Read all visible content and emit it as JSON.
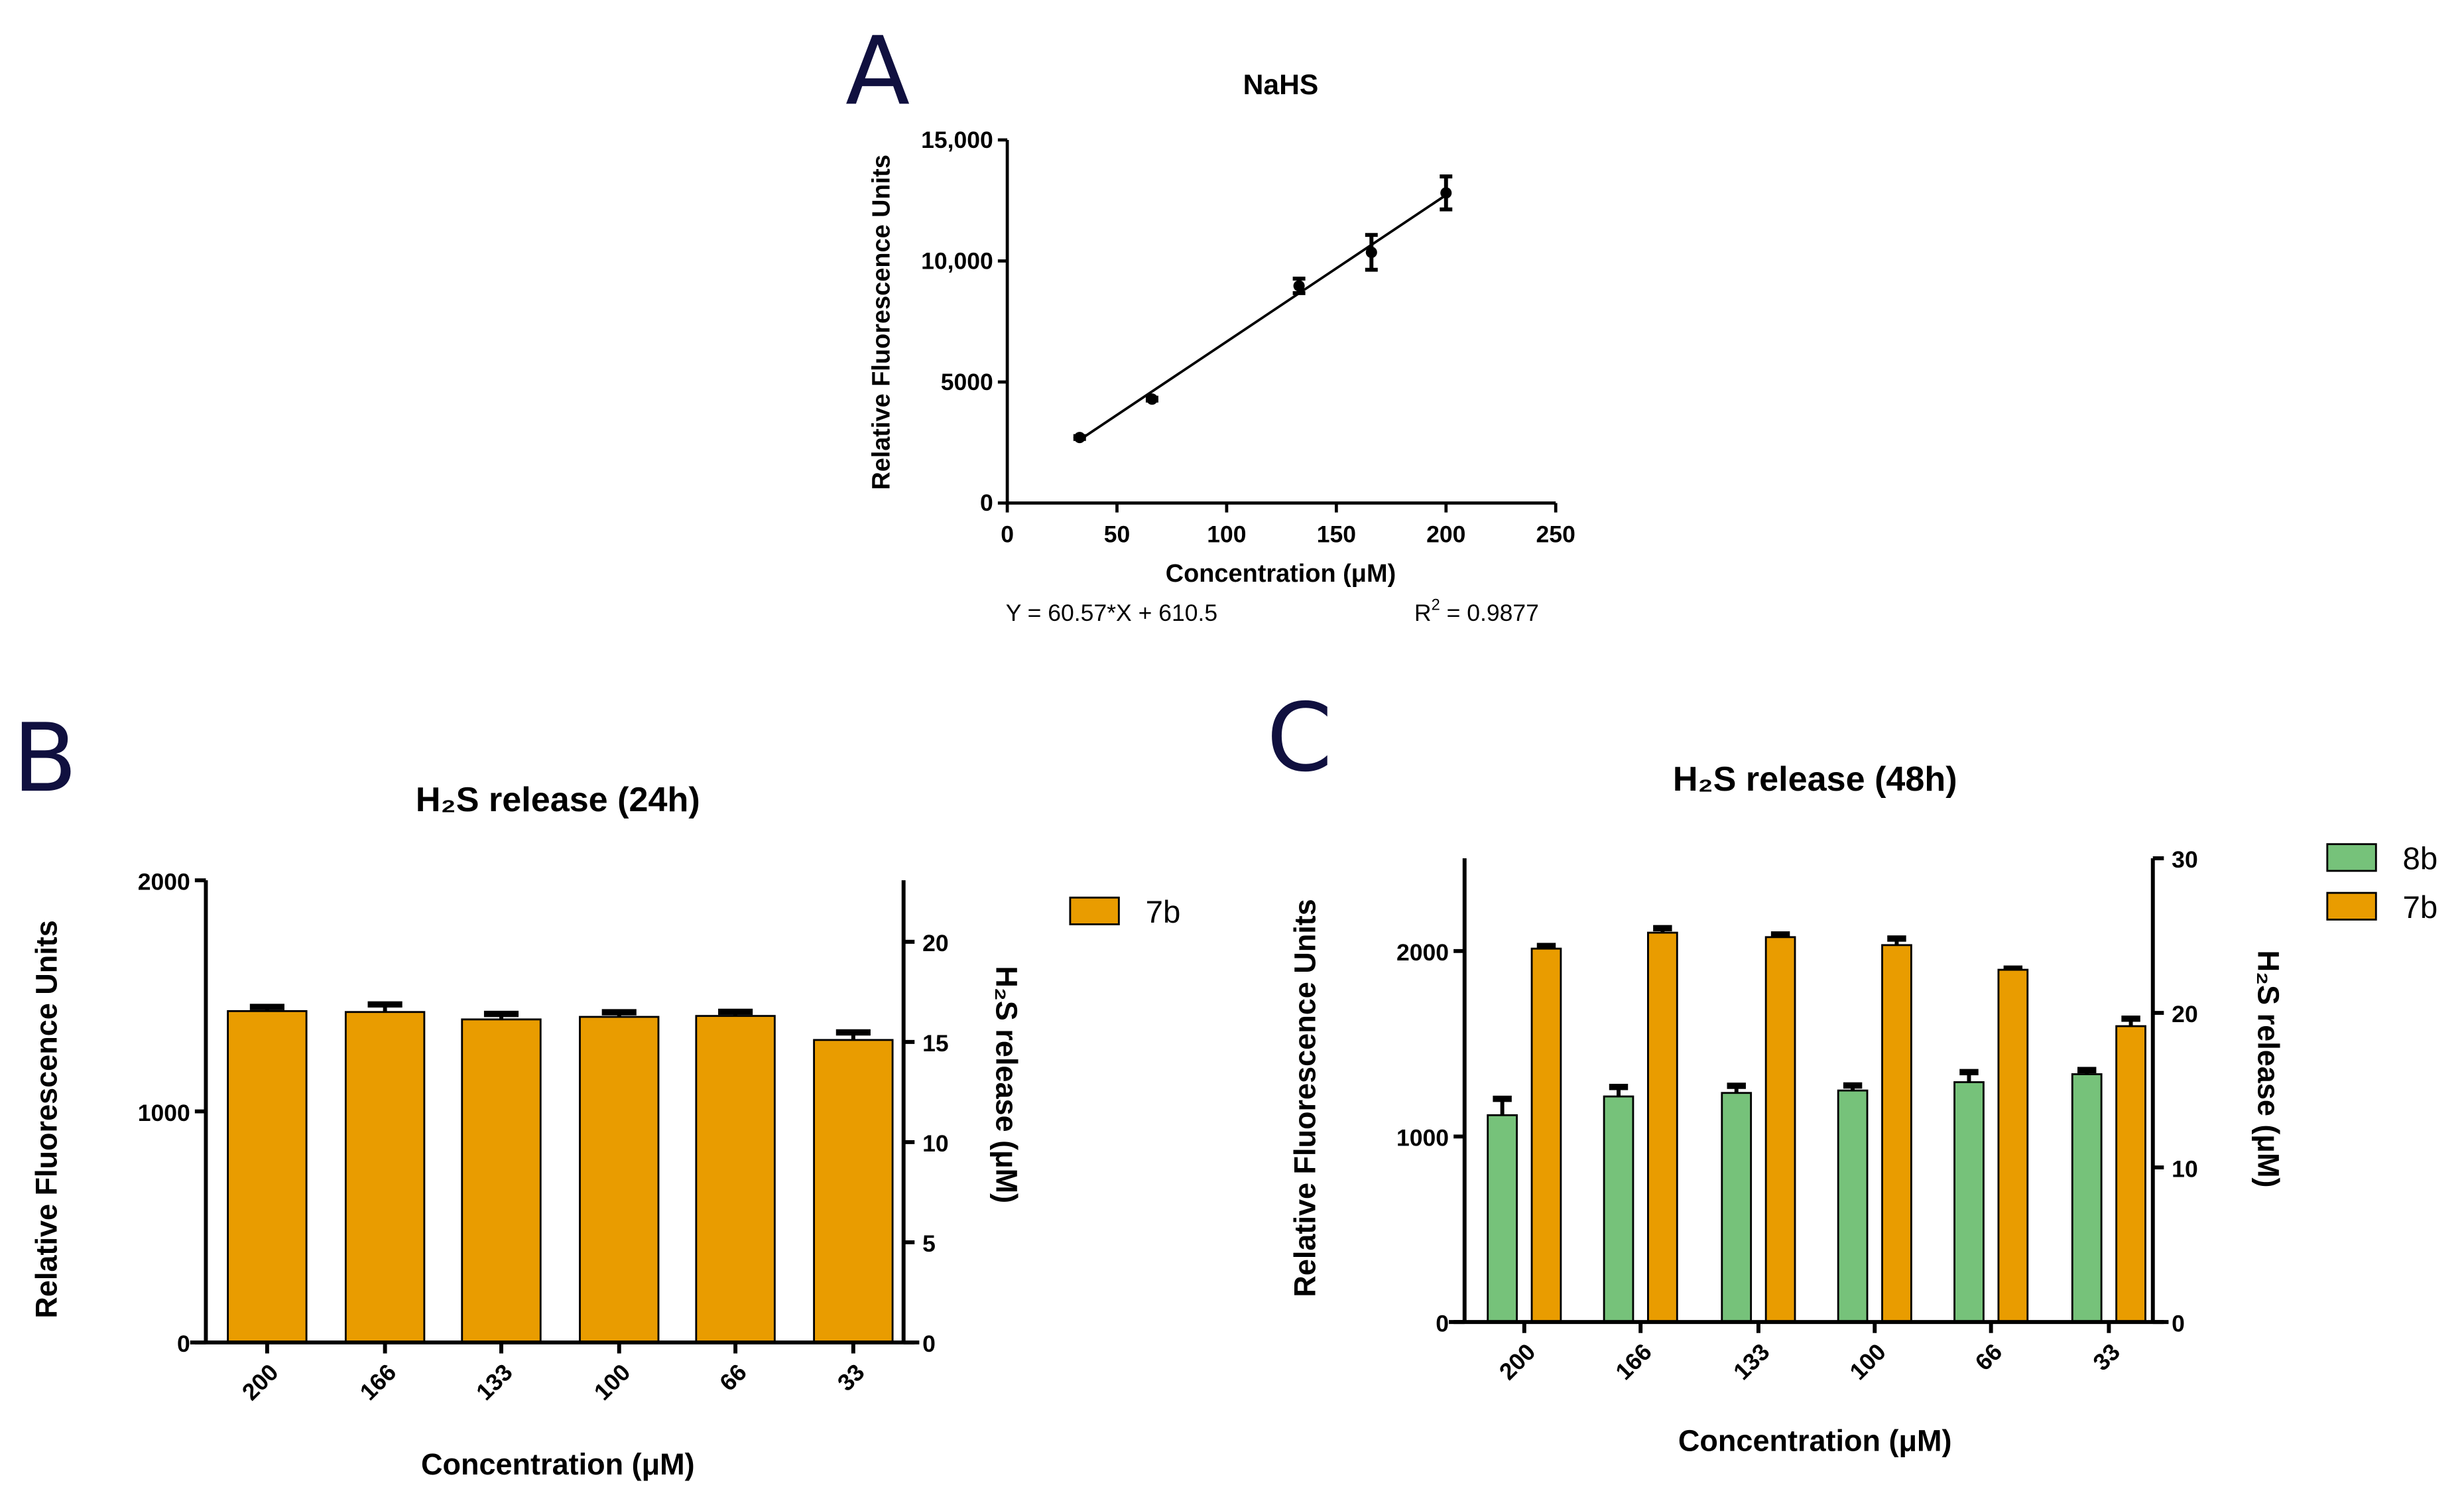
{
  "panels": {
    "A": "A",
    "B": "B",
    "C": "C"
  },
  "colors": {
    "7b": "#E99C00",
    "8b": "#76C27A",
    "panel_letter": "#10103f"
  },
  "chart_data": [
    {
      "panel": "A",
      "type": "scatter",
      "title": "NaHS",
      "xlabel": "Concentration (μM)",
      "ylabel": "Relative  Fluorescence Units",
      "xlim": [
        0,
        250
      ],
      "ylim": [
        0,
        15000
      ],
      "xticks": [
        0,
        50,
        100,
        150,
        200,
        250
      ],
      "xtick_labels": [
        "0",
        "50",
        "100",
        "150",
        "200",
        "250"
      ],
      "yticks": [
        0,
        5000,
        10000,
        15000
      ],
      "ytick_labels": [
        "0",
        "5000",
        "10,000",
        "15,000"
      ],
      "points": [
        {
          "x": 33,
          "y": 2706,
          "err": 60
        },
        {
          "x": 66,
          "y": 4293,
          "err": 60
        },
        {
          "x": 133,
          "y": 8970,
          "err": 300
        },
        {
          "x": 166,
          "y": 10356,
          "err": 720
        },
        {
          "x": 200,
          "y": 12811,
          "err": 680
        }
      ],
      "fit": {
        "slope": 60.57,
        "intercept": 610.5,
        "x_range": [
          33,
          200
        ],
        "equation": "Y = 60.57*X + 610.5",
        "r2_label": "R",
        "r2_sup": "2",
        "r2_value": " = 0.9877"
      }
    },
    {
      "panel": "B",
      "type": "bar",
      "title": "H₂S release  (24h)",
      "xlabel": "Concentration (μM)",
      "ylabel": "Relative  Fluorescence Units",
      "y2label": "H₂S release (μM)",
      "categories": [
        "200",
        "166",
        "133",
        "100",
        "66",
        "33"
      ],
      "ylim": [
        0,
        2000
      ],
      "yticks": [
        0,
        1000,
        2000
      ],
      "ytick_labels": [
        "0",
        "1000",
        "2000"
      ],
      "y2lim": [
        0,
        23.07
      ],
      "y2ticks": [
        0,
        5,
        10,
        15,
        20
      ],
      "y2tick_labels": [
        "0",
        "5",
        "10",
        "15",
        "20"
      ],
      "legend": "top-right",
      "series": [
        {
          "name": "7b",
          "values": [
            1434,
            1430,
            1398,
            1409,
            1413,
            1309
          ],
          "errors": [
            28,
            43,
            34,
            30,
            28,
            43
          ]
        }
      ]
    },
    {
      "panel": "C",
      "type": "bar",
      "title": "H₂S release  (48h)",
      "xlabel": "Concentration (μM)",
      "ylabel": "Relative  Fluorescence Units",
      "y2label": "H₂S release (μM)",
      "categories": [
        "200",
        "166",
        "133",
        "100",
        "66",
        "33"
      ],
      "ylim": [
        0,
        2500
      ],
      "yticks": [
        0,
        1000,
        2000
      ],
      "ytick_labels": [
        "0",
        "1000",
        "2000"
      ],
      "y2lim": [
        0,
        30
      ],
      "y2ticks": [
        0,
        10,
        20,
        30
      ],
      "y2tick_labels": [
        "0",
        "10",
        "20",
        "30"
      ],
      "legend": "top-right",
      "series": [
        {
          "name": "8b",
          "values": [
            1115,
            1216,
            1235,
            1248,
            1293,
            1336
          ],
          "errors": [
            101,
            64,
            51,
            40,
            67,
            35
          ]
        },
        {
          "name": "7b",
          "values": [
            2013,
            2099,
            2075,
            2032,
            1899,
            1595
          ],
          "errors": [
            27,
            37,
            27,
            48,
            19,
            53
          ]
        }
      ]
    }
  ]
}
